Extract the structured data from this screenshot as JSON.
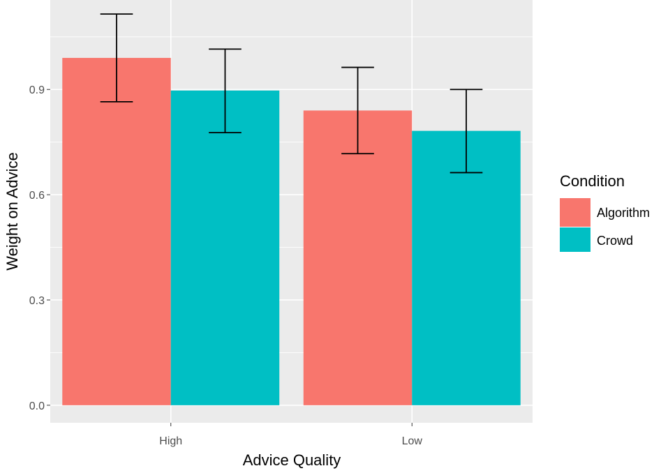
{
  "chart_data": {
    "type": "bar",
    "title": "",
    "xlabel": "Advice Quality",
    "ylabel": "Weight on Advice",
    "categories": [
      "High",
      "Low"
    ],
    "series": [
      {
        "name": "Algorithm",
        "color": "#F8766D",
        "values": [
          0.99,
          0.84
        ],
        "error_low": [
          0.865,
          0.717
        ],
        "error_high": [
          1.115,
          0.963
        ]
      },
      {
        "name": "Crowd",
        "color": "#00BFC4",
        "values": [
          0.897,
          0.782
        ],
        "error_low": [
          0.777,
          0.663
        ],
        "error_high": [
          1.015,
          0.9
        ]
      }
    ],
    "ylim": [
      -0.05,
      1.155
    ],
    "yticks": [
      0.0,
      0.3,
      0.6,
      0.9
    ],
    "ytick_labels": [
      "0.0",
      "0.3",
      "0.6",
      "0.9"
    ],
    "legend": {
      "title": "Condition",
      "position": "right"
    },
    "grid": true,
    "panel_background": "#EBEBEB"
  }
}
